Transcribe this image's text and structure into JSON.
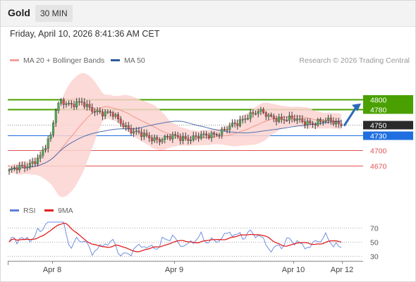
{
  "header": {
    "instrument": "Gold",
    "timeframe": "30 MIN"
  },
  "datetime": "Friday, April 10, 2026 8:41:36 AM CET",
  "legend": {
    "items": [
      {
        "label": "MA 20 + Bollinger Bands",
        "color": "#f4a09a"
      },
      {
        "label": "MA 50",
        "color": "#2c5b9e"
      }
    ],
    "rsi_items": [
      {
        "label": "RSI",
        "color": "#5b7fd6"
      },
      {
        "label": "9MA",
        "color": "#e02020"
      }
    ]
  },
  "credit": "Research © 2026 Trading Central",
  "colors": {
    "resistance": "#4aa000",
    "support": "#e05252",
    "current": "#2a2a2a",
    "pivot": "#1f6fe0",
    "candle": "#3a3a3a",
    "bb_fill": "#fbd4d0",
    "ma20": "#f4958d",
    "ma50": "#4e6fb0",
    "arrow": "#2d6ab4",
    "rsi": "#6f8fdf",
    "rsi_ma": "#e02020"
  },
  "chart_data": [
    {
      "type": "candlestick",
      "title": "Gold",
      "x_labels": [
        "Apr 8",
        "Apr 9",
        "Apr 10",
        "Apr 12"
      ],
      "ylim": [
        4605,
        4840
      ],
      "levels": [
        {
          "value": 4800,
          "label": "4800",
          "kind": "resistance"
        },
        {
          "value": 4780,
          "label": "4780",
          "kind": "resistance"
        },
        {
          "value": 4750,
          "label": "4750",
          "kind": "current"
        },
        {
          "value": 4730,
          "label": "4730",
          "kind": "pivot"
        },
        {
          "value": 4700,
          "label": "4700",
          "kind": "support"
        },
        {
          "value": 4670,
          "label": "4670",
          "kind": "support"
        }
      ],
      "series": [
        {
          "name": "MA 20 + Bollinger Bands"
        },
        {
          "name": "MA 50"
        }
      ],
      "arrow": {
        "from": 4748,
        "to": 4792
      }
    },
    {
      "type": "line",
      "series": [
        {
          "name": "RSI"
        },
        {
          "name": "9MA"
        }
      ],
      "yticks": [
        70,
        50,
        30
      ],
      "ylim": [
        25,
        80
      ]
    }
  ]
}
